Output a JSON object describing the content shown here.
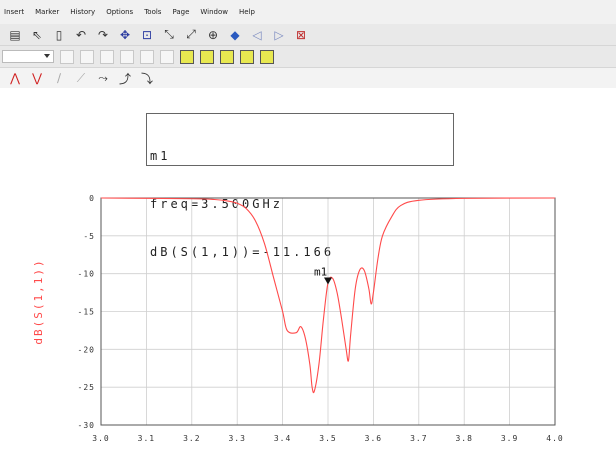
{
  "menu": [
    "Insert",
    "Marker",
    "History",
    "Options",
    "Tools",
    "Page",
    "Window",
    "Help"
  ],
  "toolbar1": [
    "save-icon",
    "pointer-icon",
    "delete-icon",
    "undo-icon",
    "redo-icon",
    "move-icon",
    "zoom-box-icon",
    "zoom-in-icon",
    "zoom-out-icon",
    "zoom-fit-icon",
    "ruler-icon",
    "prev-icon",
    "next-icon",
    "close-icon"
  ],
  "marker_readout": {
    "name": "m1",
    "freq": "freq=3.500GHz",
    "value": "dB(S(1,1))=-11.166"
  },
  "chart_data": {
    "type": "line",
    "ylabel": "dB(S(1,1))",
    "xlim": [
      3.0,
      4.0
    ],
    "ylim": [
      -30,
      0
    ],
    "xticks": [
      "3.0",
      "3.1",
      "3.2",
      "3.3",
      "3.4",
      "3.5",
      "3.6",
      "3.7",
      "3.8",
      "3.9",
      "4.0"
    ],
    "yticks": [
      "0",
      "-5",
      "-10",
      "-15",
      "-20",
      "-25",
      "-30"
    ],
    "grid": true,
    "series_color": "#ff4a4a",
    "series": [
      {
        "x": [
          3.0,
          3.2,
          3.25,
          3.28,
          3.3,
          3.32,
          3.34,
          3.36,
          3.38,
          3.4,
          3.41,
          3.43,
          3.44,
          3.45,
          3.46,
          3.465,
          3.47,
          3.48,
          3.49,
          3.5,
          3.51,
          3.52,
          3.53,
          3.54,
          3.545,
          3.55,
          3.56,
          3.57,
          3.58,
          3.59,
          3.595,
          3.6,
          3.61,
          3.62,
          3.64,
          3.66,
          3.7,
          3.8,
          4.0
        ],
        "y": [
          0,
          -0.1,
          -0.2,
          -0.4,
          -0.7,
          -1.4,
          -3.0,
          -6.0,
          -10.5,
          -15.0,
          -17.5,
          -17.8,
          -17.0,
          -18.5,
          -22.0,
          -25.0,
          -25.5,
          -22.0,
          -16.0,
          -11.2,
          -10.6,
          -12.5,
          -16.0,
          -20.0,
          -21.5,
          -18.0,
          -12.0,
          -9.5,
          -9.6,
          -12.0,
          -14.0,
          -12.5,
          -8.0,
          -5.0,
          -2.5,
          -1.0,
          -0.3,
          -0.05,
          0
        ]
      }
    ],
    "marker": {
      "label": "m1",
      "x": 3.5,
      "y": -11.166
    }
  }
}
